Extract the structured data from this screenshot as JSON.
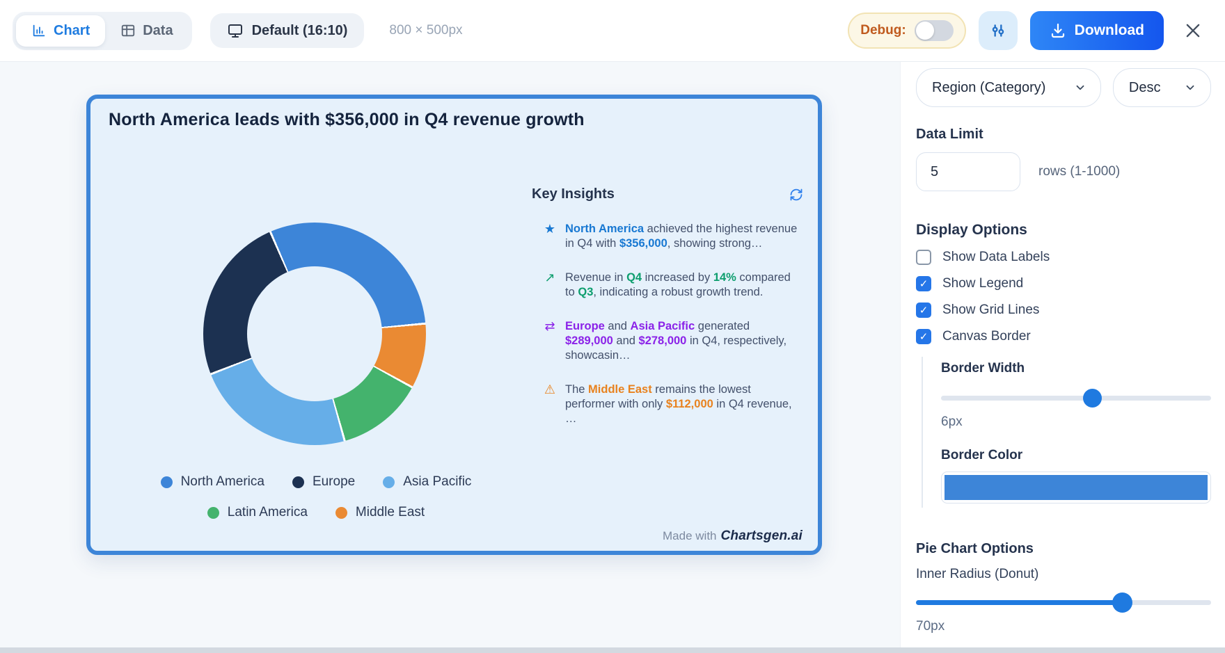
{
  "toolbar": {
    "tabs": [
      {
        "label": "Chart",
        "active": true
      },
      {
        "label": "Data",
        "active": false
      }
    ],
    "preset": "Default (16:10)",
    "canvas_size": "800 × 500px",
    "debug_label": "Debug:",
    "debug_on": false,
    "download_label": "Download"
  },
  "chart_card": {
    "title": "North America leads with $356,000 in Q4 revenue growth",
    "insights_title": "Key Insights",
    "insights": [
      {
        "icon": "star",
        "color": "#1878d2",
        "segments": [
          {
            "t": "North America",
            "b": true
          },
          {
            "t": " achieved the highest revenue in Q4 with ",
            "b": false
          },
          {
            "t": "$356,000",
            "b": true
          },
          {
            "t": ", showing strong…",
            "b": false
          }
        ]
      },
      {
        "icon": "trend-up",
        "color": "#0d9e6e",
        "segments": [
          {
            "t": "Revenue in ",
            "b": false
          },
          {
            "t": "Q4",
            "b": true
          },
          {
            "t": " increased by ",
            "b": false
          },
          {
            "t": "14%",
            "b": true
          },
          {
            "t": " compared to ",
            "b": false
          },
          {
            "t": "Q3",
            "b": true
          },
          {
            "t": ", indicating a robust growth trend.",
            "b": false
          }
        ]
      },
      {
        "icon": "swap",
        "color": "#8b22e8",
        "segments": [
          {
            "t": "Europe",
            "b": true
          },
          {
            "t": " and ",
            "b": false
          },
          {
            "t": "Asia Pacific",
            "b": true
          },
          {
            "t": " generated ",
            "b": false
          },
          {
            "t": "$289,000",
            "b": true
          },
          {
            "t": " and ",
            "b": false
          },
          {
            "t": "$278,000",
            "b": true
          },
          {
            "t": " in Q4, respectively, showcasin…",
            "b": false
          }
        ]
      },
      {
        "icon": "warning",
        "color": "#e8821e",
        "segments": [
          {
            "t": "The ",
            "b": false
          },
          {
            "t": "Middle East",
            "b": true
          },
          {
            "t": " remains the lowest performer with only ",
            "b": false
          },
          {
            "t": "$112,000",
            "b": true
          },
          {
            "t": " in Q4 revenue, …",
            "b": false
          }
        ]
      }
    ],
    "watermark_prefix": "Made with",
    "watermark_brand": "Chartsgen.ai"
  },
  "chart_data": {
    "type": "pie",
    "variant": "donut",
    "title": "North America leads with $356,000 in Q4 revenue growth",
    "categories": [
      "North America",
      "Europe",
      "Asia Pacific",
      "Latin America",
      "Middle East"
    ],
    "values": [
      356000,
      289000,
      278000,
      150000,
      112000
    ],
    "value_note": "Q4 revenue in USD; North America, Europe, Asia Pacific and Middle East values shown in insight text; Latin America estimated from arc length",
    "colors": [
      "#3d85d8",
      "#1c3151",
      "#66aee8",
      "#44b36d",
      "#ea8a33"
    ],
    "legend_position": "bottom",
    "data_labels": false,
    "inner_radius_ratio": 0.607,
    "start_angle_deg": -24,
    "clockwise_order": [
      "North America",
      "Middle East",
      "Latin America",
      "Asia Pacific",
      "Europe"
    ]
  },
  "sidebar": {
    "category_select": "Region (Category)",
    "sort_select": "Desc",
    "data_limit": {
      "label": "Data Limit",
      "value": "5",
      "hint": "rows (1-1000)"
    },
    "display_options": {
      "title": "Display Options",
      "checkboxes": [
        {
          "label": "Show Data Labels",
          "checked": false
        },
        {
          "label": "Show Legend",
          "checked": true
        },
        {
          "label": "Show Grid Lines",
          "checked": true
        },
        {
          "label": "Canvas Border",
          "checked": true
        }
      ]
    },
    "border_width": {
      "label": "Border Width",
      "value_label": "6px",
      "percent": 56
    },
    "border_color": {
      "label": "Border Color",
      "value": "#3d85d8"
    },
    "pie_options": {
      "title": "Pie Chart Options",
      "inner_radius_label": "Inner Radius (Donut)",
      "value_label": "70px",
      "percent": 70
    }
  },
  "theme": {
    "accent": "#2f80ed",
    "card_background": "#e6f1fb",
    "card_border": "#3d85d8",
    "debug_text": "#c05a1e"
  }
}
